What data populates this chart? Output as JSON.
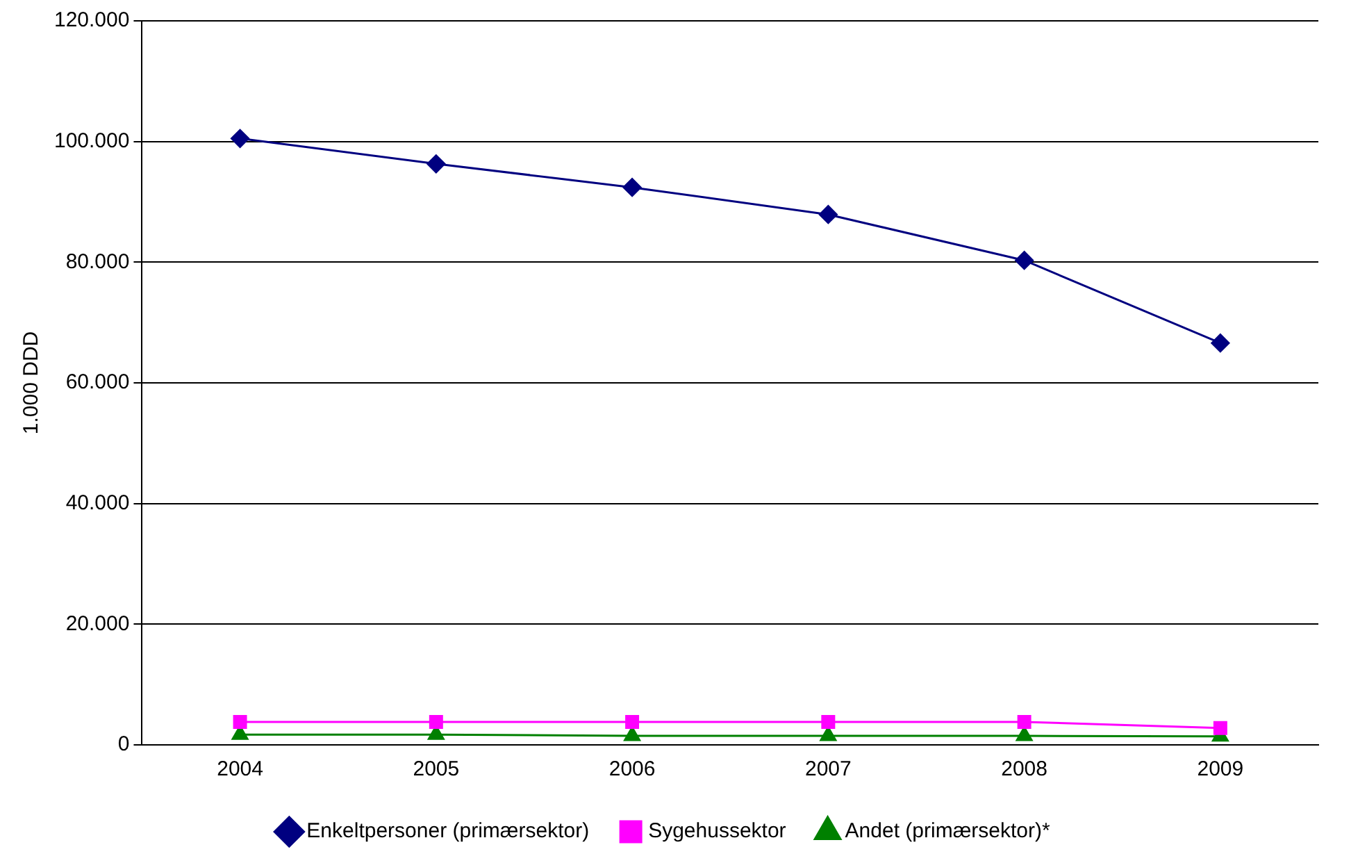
{
  "chart_data": {
    "type": "line",
    "ylabel": "1.000 DDD",
    "categories": [
      "2004",
      "2005",
      "2006",
      "2007",
      "2008",
      "2009"
    ],
    "series": [
      {
        "name": "Enkeltpersoner (primærsektor)",
        "color": "#000080",
        "marker": "diamond",
        "values": [
          100500,
          96300,
          92400,
          87900,
          80300,
          66600
        ]
      },
      {
        "name": "Sygehussektor",
        "color": "#ff00ff",
        "marker": "square",
        "values": [
          3800,
          3800,
          3800,
          3800,
          3800,
          2800
        ]
      },
      {
        "name": "Andet (primærsektor)*",
        "color": "#008000",
        "marker": "triangle",
        "values": [
          1700,
          1700,
          1500,
          1500,
          1500,
          1400
        ]
      }
    ],
    "ylim": [
      0,
      120000
    ],
    "yticks": [
      0,
      {
        "value": 20000,
        "label": "20.000"
      },
      {
        "value": 40000,
        "label": "40.000"
      },
      {
        "value": 60000,
        "label": "60.000"
      },
      {
        "value": 80000,
        "label": "80.000"
      },
      {
        "value": 100000,
        "label": "100.000"
      },
      {
        "value": 120000,
        "label": "120.000"
      }
    ],
    "grid": "y",
    "legend": "bottom",
    "line_style": "solid"
  }
}
